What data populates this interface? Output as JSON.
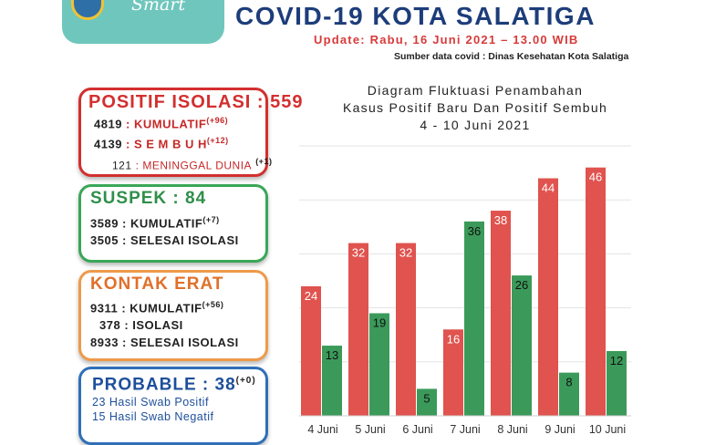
{
  "header": {
    "logo_word": "Smart",
    "title": "COVID-19 KOTA SALATIGA",
    "update": "Update: Rabu, 16 Juni 2021 – 13.00 WIB",
    "source": "Sumber data covid : Dinas Kesehatan Kota Salatiga"
  },
  "colors": {
    "positif": "#e0534e",
    "sembuh": "#3b9a5a",
    "title_blue": "#1d3d7a"
  },
  "positif": {
    "head": "POSITIF ISOLASI : 559",
    "kumulatif_num": "4819",
    "kumulatif_label": ": KUMULATIF",
    "kumulatif_delta": "(+96)",
    "sembuh_num": "4139",
    "sembuh_label": ": S E M B U H",
    "sembuh_delta": "(+12)",
    "meninggal_num": "121",
    "meninggal_label": ": MENINGGAL DUNIA",
    "meninggal_delta": "(+1)"
  },
  "suspek": {
    "head": "SUSPEK : 84",
    "kumulatif_num": "3589",
    "kumulatif_label": ": KUMULATIF",
    "kumulatif_delta": "(+7)",
    "selesai_num": "3505",
    "selesai_label": ": SELESAI ISOLASI"
  },
  "kontak": {
    "head": "KONTAK ERAT",
    "kumulatif_num": "9311",
    "kumulatif_label": ": KUMULATIF",
    "kumulatif_delta": "(+56)",
    "isolasi_num": "378",
    "isolasi_label": ": ISOLASI",
    "selesai_num": "8933",
    "selesai_label": ": SELESAI ISOLASI"
  },
  "probable": {
    "head": "PROBABLE : 38",
    "head_delta": "(+0)",
    "line1": "23 Hasil Swab Positif",
    "line2": "15 Hasil Swab Negatif"
  },
  "chart_data": {
    "type": "bar",
    "title_lines": [
      "Diagram Fluktuasi Penambahan",
      "Kasus Positif Baru Dan Positif Sembuh",
      "4 - 10 Juni 2021"
    ],
    "categories": [
      "4 Juni",
      "5 Juni",
      "6 Juni",
      "7 Juni",
      "8 Juni",
      "9 Juni",
      "10 Juni"
    ],
    "series": [
      {
        "values": [
          24,
          32,
          32,
          16,
          38,
          44,
          46
        ],
        "color": "#e0534e"
      },
      {
        "values": [
          13,
          19,
          5,
          36,
          26,
          8,
          12
        ],
        "color": "#3b9a5a"
      }
    ],
    "ylim": [
      0,
      50
    ],
    "grid": true
  }
}
